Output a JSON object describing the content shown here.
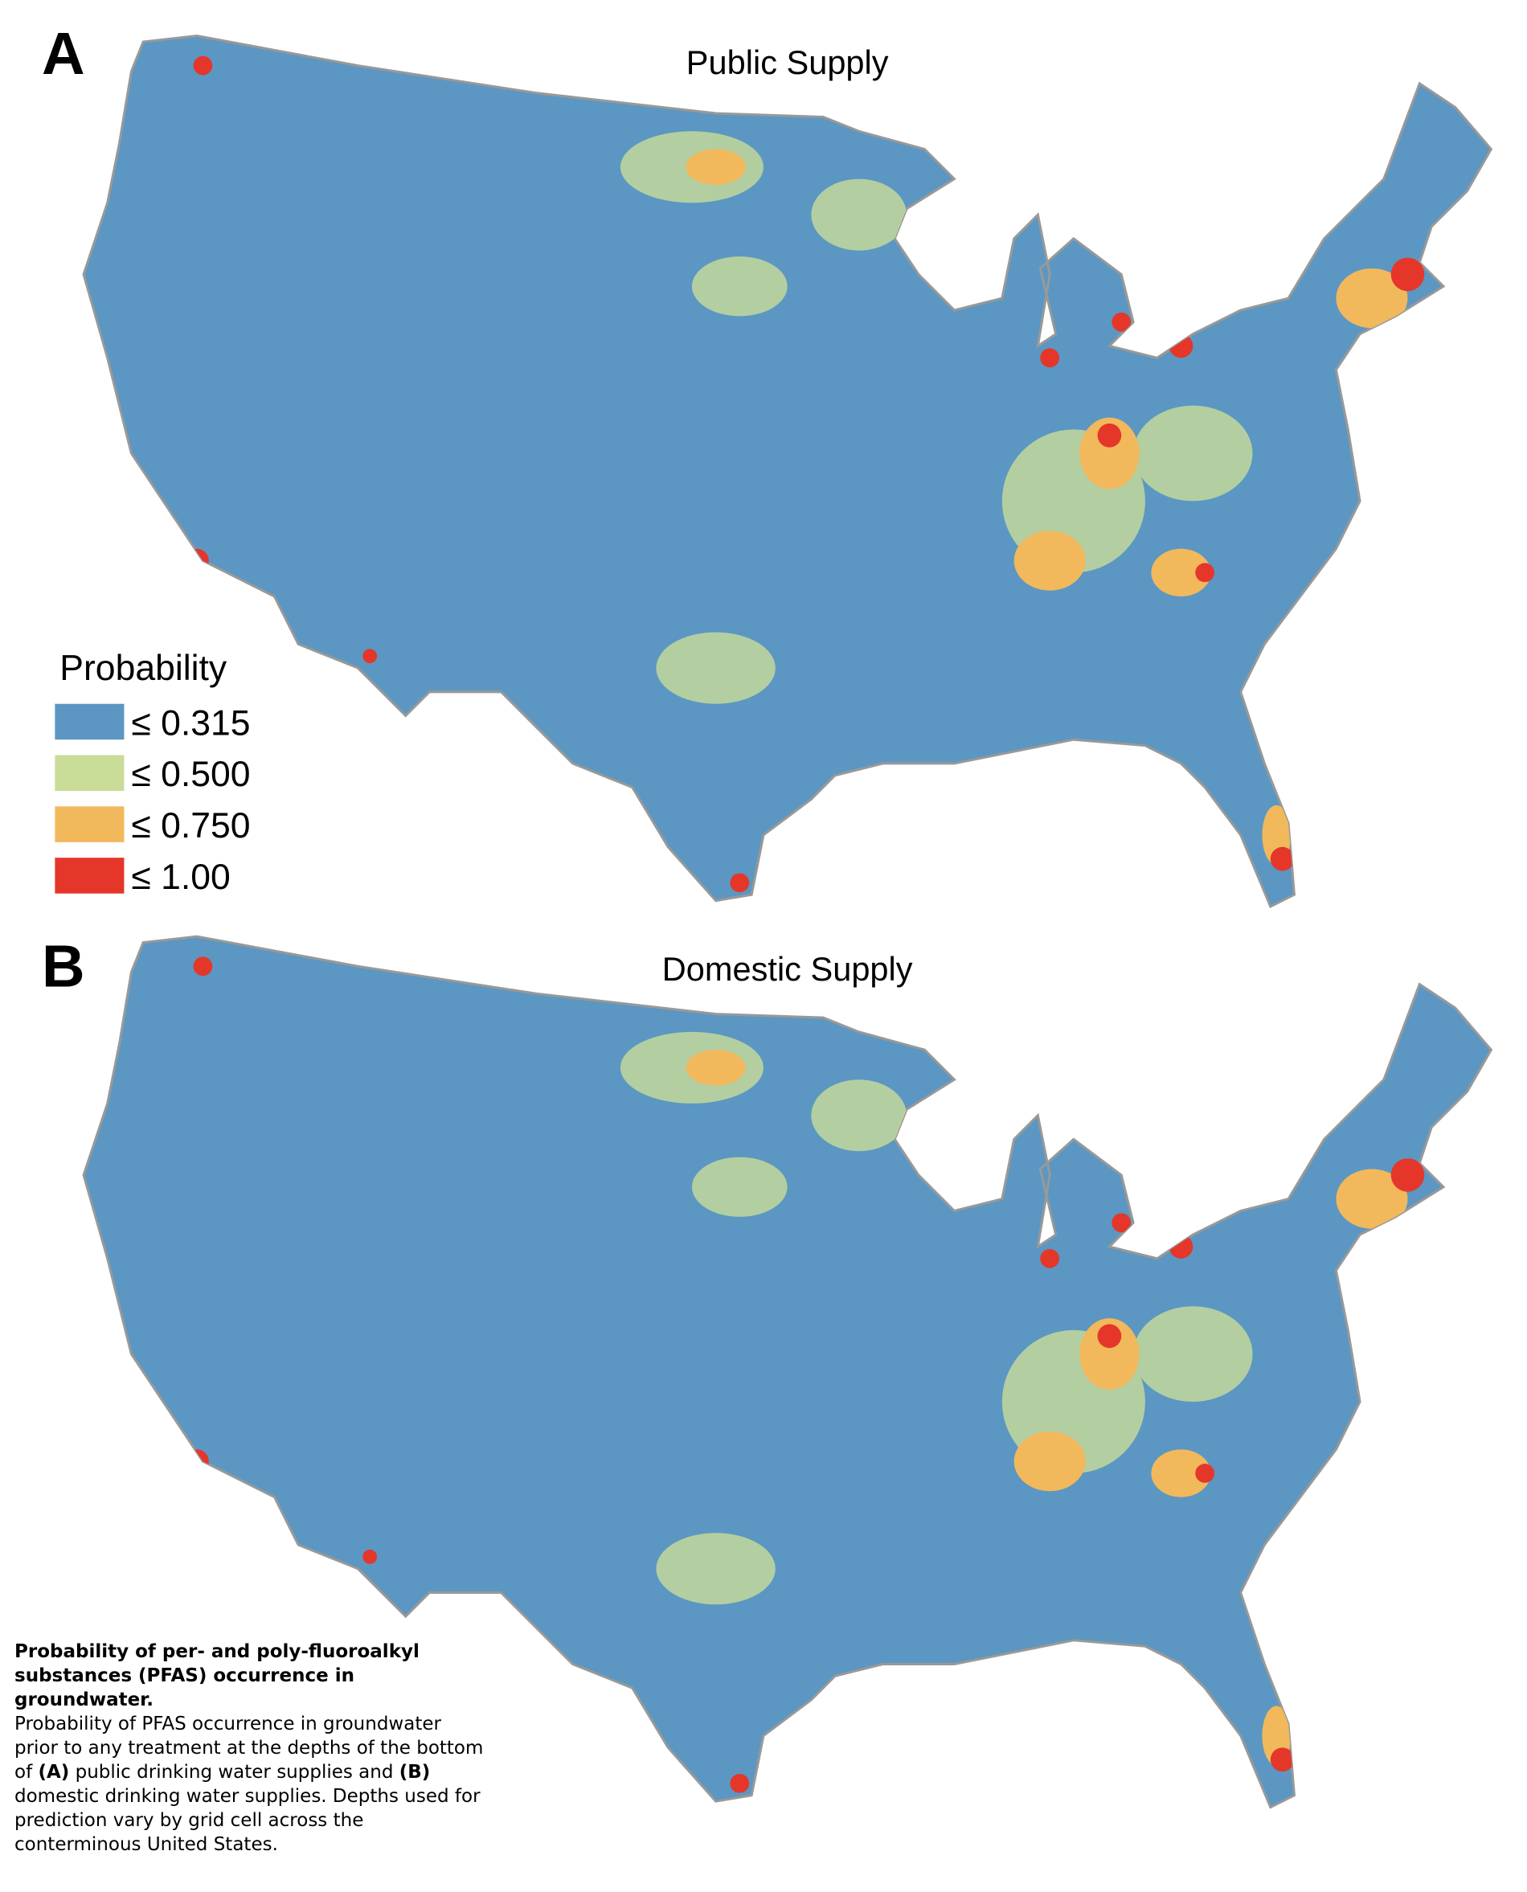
{
  "panels": [
    {
      "label": "A",
      "title": "Public Supply"
    },
    {
      "label": "B",
      "title": "Domestic Supply"
    }
  ],
  "legend": {
    "title": "Probability",
    "items": [
      {
        "label": "≤  0.315",
        "color": "#5b97c2"
      },
      {
        "label": "≤  0.500",
        "color": "#c9dc98"
      },
      {
        "label": "≤  0.750",
        "color": "#f2b85c"
      },
      {
        "label": "≤  1.00",
        "color": "#e5362a"
      }
    ]
  },
  "caption": {
    "title": "Probability of per- and poly-fluoroalkyl substances (PFAS) occurrence in groundwater.",
    "body": [
      "Probability of PFAS occurrence in groundwater prior to any treatment at the depths of the bottom of ",
      "(A)",
      " public drinking water supplies and ",
      "(B)",
      " domestic drinking water supplies. Depths used for prediction vary by grid cell across the conterminous United States."
    ]
  }
}
